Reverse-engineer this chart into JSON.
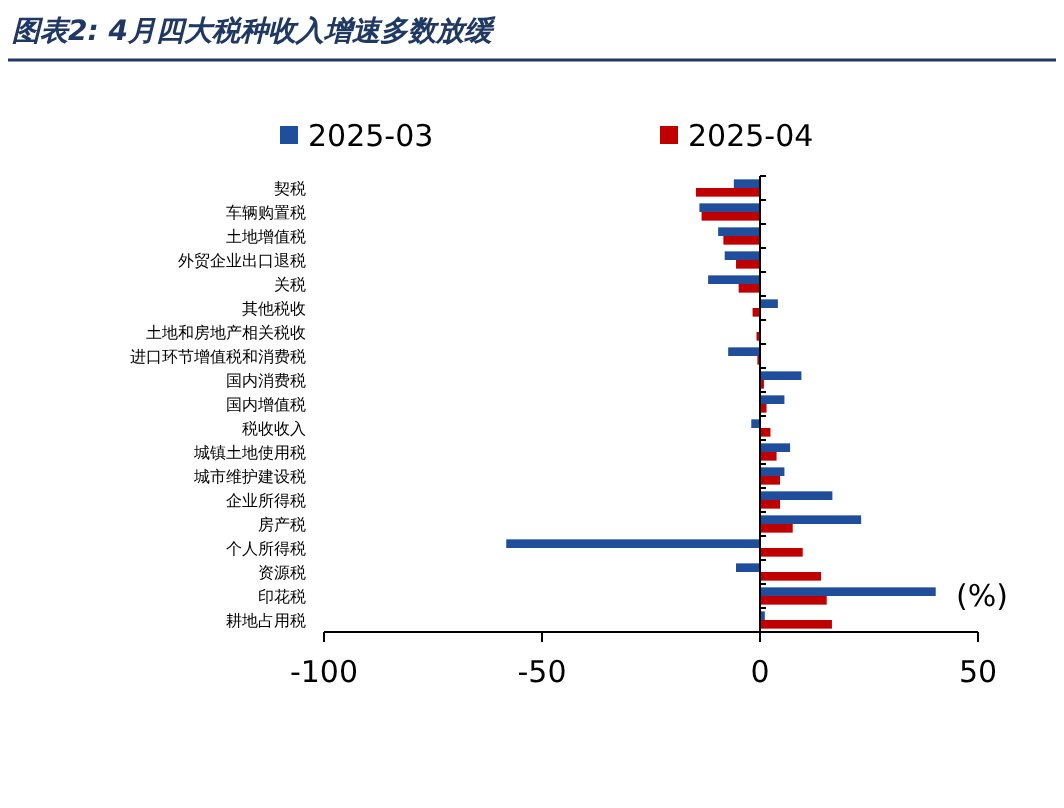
{
  "chart_data": {
    "type": "bar",
    "orientation": "horizontal",
    "title": "图表2: 4月四大税种收入增速多数放缓",
    "categories": [
      "契税",
      "车辆购置税",
      "土地增值税",
      "外贸企业出口退税",
      "关税",
      "其他税收",
      "土地和房地产相关税收",
      "进口环节增值税和消费税",
      "国内消费税",
      "国内增值税",
      "税收收入",
      "城镇土地使用税",
      "城市维护建设税",
      "企业所得税",
      "房产税",
      "个人所得税",
      "资源税",
      "印花税",
      "耕地占用税"
    ],
    "series": [
      {
        "name": "2025-03",
        "color": "#1f4e9c",
        "values": [
          -6.0,
          -13.9,
          -9.6,
          -8.1,
          -11.9,
          4.1,
          0,
          -7.3,
          9.5,
          5.6,
          -2.0,
          6.9,
          5.6,
          16.6,
          23.2,
          -58.2,
          -5.5,
          40.3,
          1.1
        ]
      },
      {
        "name": "2025-04",
        "color": "#c00000",
        "values": [
          -14.7,
          -13.4,
          -8.4,
          -5.5,
          -4.9,
          -1.7,
          -0.8,
          -0.6,
          0.9,
          1.5,
          2.4,
          3.8,
          4.6,
          4.6,
          7.5,
          9.8,
          14.0,
          15.3,
          16.5
        ]
      }
    ],
    "xlim": [
      -100,
      50
    ],
    "xticks": [
      -100,
      -50,
      0,
      50
    ],
    "legend": "top",
    "annotations": [
      "(%)"
    ]
  }
}
